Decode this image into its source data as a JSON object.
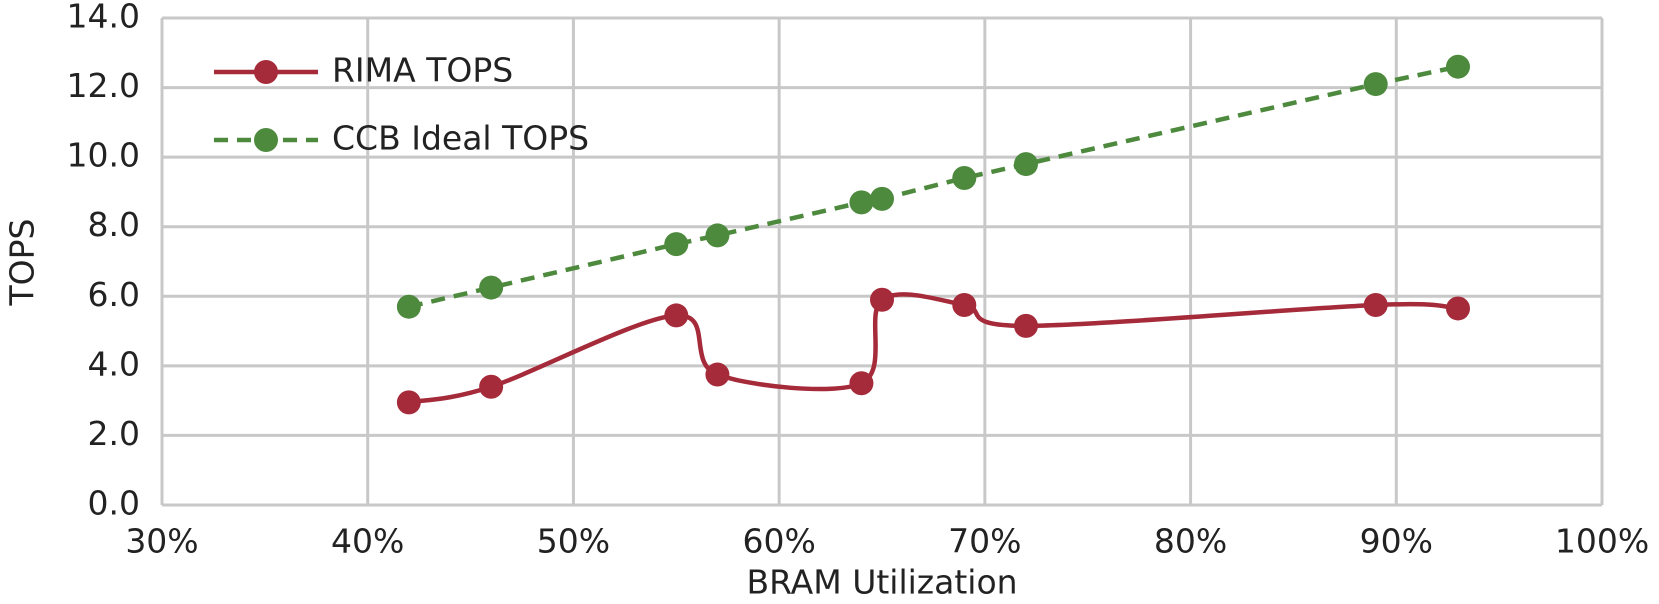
{
  "chart_data": {
    "type": "line",
    "x_label": "BRAM Utilization",
    "y_label": "TOPS",
    "series": [
      {
        "name": "RIMA TOPS",
        "color": "#a52a3a",
        "style": "solid",
        "smooth": true,
        "x": [
          42,
          46,
          55,
          57,
          64,
          65,
          69,
          72,
          89,
          93
        ],
        "values": [
          2.95,
          3.4,
          5.45,
          3.75,
          3.5,
          5.9,
          5.75,
          5.15,
          5.75,
          5.65
        ]
      },
      {
        "name": "CCB Ideal TOPS",
        "color": "#4e8a3e",
        "style": "dashed",
        "smooth": false,
        "x": [
          42,
          46,
          55,
          57,
          64,
          65,
          69,
          72,
          89,
          93
        ],
        "values": [
          5.7,
          6.25,
          7.5,
          7.75,
          8.7,
          8.8,
          9.4,
          9.8,
          12.1,
          12.6
        ]
      }
    ],
    "xlim": [
      30,
      100
    ],
    "xticks": [
      {
        "value": 30,
        "label": "30%"
      },
      {
        "value": 40,
        "label": "40%"
      },
      {
        "value": 50,
        "label": "50%"
      },
      {
        "value": 60,
        "label": "60%"
      },
      {
        "value": 70,
        "label": "70%"
      },
      {
        "value": 80,
        "label": "80%"
      },
      {
        "value": 90,
        "label": "90%"
      },
      {
        "value": 100,
        "label": "100%"
      }
    ],
    "ylim": [
      0,
      14
    ],
    "yticks": [
      {
        "value": 0,
        "label": "0.0"
      },
      {
        "value": 2,
        "label": "2.0"
      },
      {
        "value": 4,
        "label": "4.0"
      },
      {
        "value": 6,
        "label": "6.0"
      },
      {
        "value": 8,
        "label": "8.0"
      },
      {
        "value": 10,
        "label": "10.0"
      },
      {
        "value": 12,
        "label": "12.0"
      },
      {
        "value": 14,
        "label": "14.0"
      }
    ],
    "grid": true,
    "legend": "top-left"
  }
}
